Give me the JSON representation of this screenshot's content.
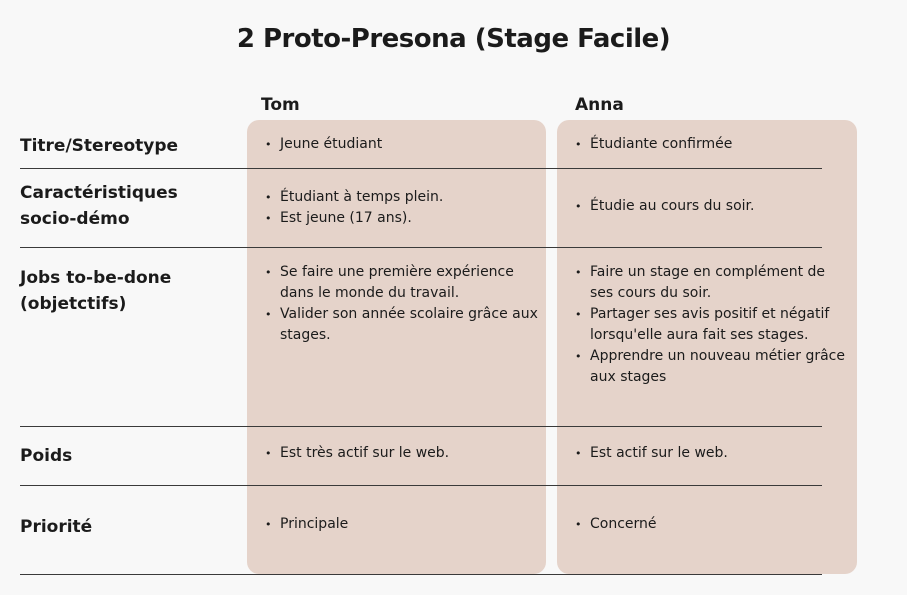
{
  "title": "2 Proto-Presona (Stage Facile)",
  "columns": {
    "tom": "Tom",
    "anna": "Anna"
  },
  "rows": [
    {
      "label": "Titre/Stereotype",
      "tom": [
        "Jeune étudiant"
      ],
      "anna": [
        "Étudiante confirmée"
      ]
    },
    {
      "label": "Caractéristiques socio-démo",
      "tom": [
        "Étudiant à temps plein.",
        "Est jeune (17 ans)."
      ],
      "anna": [
        "Étudie au cours du soir."
      ]
    },
    {
      "label": "Jobs to-be-done (objetctifs)",
      "tom": [
        "Se faire une première expérience dans le monde du travail.",
        "Valider son année scolaire grâce aux stages."
      ],
      "anna": [
        "Faire un stage en complément de ses cours du soir.",
        "Partager ses avis positif et négatif lorsqu'elle aura fait ses stages.",
        "Apprendre un nouveau métier grâce aux stages"
      ]
    },
    {
      "label": "Poids",
      "tom": [
        "Est très actif sur le web."
      ],
      "anna": [
        "Est actif sur le web."
      ]
    },
    {
      "label": "Priorité",
      "tom": [
        "Principale"
      ],
      "anna": [
        "Concerné"
      ]
    }
  ],
  "colors": {
    "card": "#e5d3ca",
    "background": "#f8f8f8",
    "text": "#1b1b1b"
  }
}
